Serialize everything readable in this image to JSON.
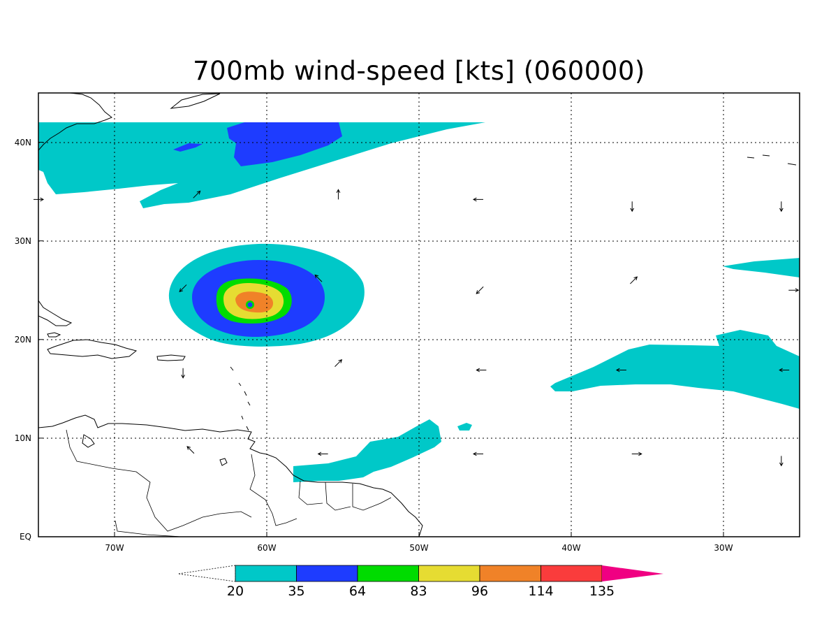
{
  "figure": {
    "title": "700mb wind-speed [kts] (060000)"
  },
  "map": {
    "lon_range": [
      -75,
      -25
    ],
    "lat_range": [
      0,
      45
    ],
    "grid": "dotted",
    "x_ticks": [
      {
        "lon": -70,
        "label": "70W"
      },
      {
        "lon": -60,
        "label": "60W"
      },
      {
        "lon": -50,
        "label": "50W"
      },
      {
        "lon": -40,
        "label": "40W"
      },
      {
        "lon": -30,
        "label": "30W"
      }
    ],
    "y_ticks": [
      {
        "lat": 0,
        "label": "EQ"
      },
      {
        "lat": 10,
        "label": "10N"
      },
      {
        "lat": 20,
        "label": "20N"
      },
      {
        "lat": 30,
        "label": "30N"
      },
      {
        "lat": 40,
        "label": "40N"
      }
    ]
  },
  "colorbar": {
    "levels": [
      "20",
      "35",
      "64",
      "83",
      "96",
      "114",
      "135"
    ],
    "colors": [
      "#00c8c8",
      "#1e3cff",
      "#00dc00",
      "#e6dc32",
      "#f08228",
      "#fa3c3c",
      "#f00082"
    ],
    "extends": "both"
  },
  "chart_data": {
    "type": "heatmap",
    "title": "700mb wind-speed [kts] (060000)",
    "variable": "700mb wind speed",
    "units": "kts",
    "levels": [
      20,
      35,
      64,
      83,
      96,
      114,
      135
    ],
    "features": [
      {
        "feature": "hurricane core",
        "center_lon": -61,
        "center_lat": 23.5,
        "max_level_kts": 114,
        "extents": {
          "20": "lon -66 to -53, lat 19.5-29.5",
          "35": "lon -63.5 to -56.5, lat 20.3-26.8",
          "64": "lon -61.5 to -58.5, lat 21.5-25.2"
        }
      },
      {
        "feature": "northern jet band",
        "lon_range": [
          -75,
          -45.5
        ],
        "lat_range": [
          33.5,
          42
        ],
        "max_level_kts": 35
      },
      {
        "feature": "eastern trade band",
        "lon_range": [
          -42.5,
          -25
        ],
        "lat_range": [
          13,
          21
        ],
        "max_level_kts": 20
      },
      {
        "feature": "northeast patch",
        "lon_range": [
          -35,
          -25
        ],
        "lat_range": [
          26,
          28
        ],
        "max_level_kts": 20
      },
      {
        "feature": "south american coast band",
        "lon_range": [
          -58.5,
          -48
        ],
        "lat_range": [
          5.8,
          11.5
        ],
        "max_level_kts": 20
      }
    ],
    "vectors": [
      {
        "lon": -64.6,
        "lat": 34.7,
        "dir": "NE"
      },
      {
        "lon": -55.3,
        "lat": 34.7,
        "dir": "N"
      },
      {
        "lon": -46.1,
        "lat": 34.2,
        "dir": "W"
      },
      {
        "lon": -36.0,
        "lat": 33.5,
        "dir": "S"
      },
      {
        "lon": -26.2,
        "lat": 33.5,
        "dir": "S"
      },
      {
        "lon": -75.0,
        "lat": 34.2,
        "dir": "E"
      },
      {
        "lon": -65.5,
        "lat": 25.2,
        "dir": "SW"
      },
      {
        "lon": -56.6,
        "lat": 26.2,
        "dir": "NW"
      },
      {
        "lon": -46.0,
        "lat": 25.0,
        "dir": "SW"
      },
      {
        "lon": -35.9,
        "lat": 26.0,
        "dir": "NE"
      },
      {
        "lon": -25.4,
        "lat": 25.0,
        "dir": "E"
      },
      {
        "lon": -65.5,
        "lat": 16.6,
        "dir": "S"
      },
      {
        "lon": -55.3,
        "lat": 17.6,
        "dir": "NE"
      },
      {
        "lon": -45.9,
        "lat": 16.9,
        "dir": "W"
      },
      {
        "lon": -36.7,
        "lat": 16.9,
        "dir": "W"
      },
      {
        "lon": -26.0,
        "lat": 16.9,
        "dir": "W"
      },
      {
        "lon": -65.0,
        "lat": 8.8,
        "dir": "NW"
      },
      {
        "lon": -56.3,
        "lat": 8.4,
        "dir": "W"
      },
      {
        "lon": -46.1,
        "lat": 8.4,
        "dir": "W"
      },
      {
        "lon": -35.7,
        "lat": 8.4,
        "dir": "E"
      },
      {
        "lon": -26.2,
        "lat": 7.7,
        "dir": "S"
      }
    ]
  }
}
